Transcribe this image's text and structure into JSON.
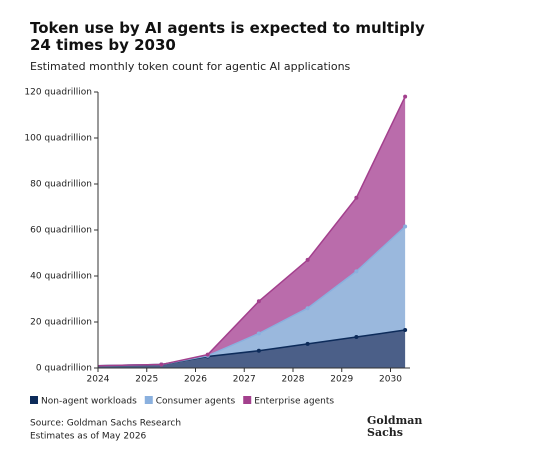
{
  "chart_data": {
    "type": "stacked-area",
    "title": "Token use by AI agents is expected to multiply 24 times by 2030",
    "subtitle": "Estimated monthly token count for agentic AI applications",
    "x": [
      2024,
      2025.3,
      2026.25,
      2027.3,
      2028.3,
      2029.3,
      2030.3
    ],
    "xlim": [
      2024,
      2030.4
    ],
    "xticks": [
      2024,
      2025,
      2026,
      2027,
      2028,
      2029,
      2030
    ],
    "ylim": [
      0,
      120
    ],
    "yticks": [
      {
        "value": 0,
        "label": "0 quadrillion"
      },
      {
        "value": 20,
        "label": "20 quadrillion"
      },
      {
        "value": 40,
        "label": "40 quadrillion"
      },
      {
        "value": 60,
        "label": "60 quadrillion"
      },
      {
        "value": 80,
        "label": "80 quadrillion"
      },
      {
        "value": 100,
        "label": "100 quadrillion"
      },
      {
        "value": 120,
        "label": "120 quadrillion"
      }
    ],
    "series": [
      {
        "name": "Non-agent workloads",
        "color": "#0d2b5a",
        "fill": "#4b5f88",
        "values": [
          1,
          1.5,
          5,
          7.5,
          10.5,
          13.5,
          16.5
        ]
      },
      {
        "name": "Consumer agents",
        "color": "#8ab0de",
        "fill": "#9ab8dd",
        "values": [
          0,
          0,
          0.3,
          7.5,
          15.5,
          28.5,
          45
        ]
      },
      {
        "name": "Enterprise agents",
        "color": "#a3408d",
        "fill": "#ba6cab",
        "values": [
          0,
          0,
          0.5,
          14,
          21,
          32,
          56.5
        ]
      }
    ],
    "source": "Source: Goldman Sachs Research",
    "note": "Estimates as of May 2026",
    "logo": [
      "Goldman",
      "Sachs"
    ]
  }
}
